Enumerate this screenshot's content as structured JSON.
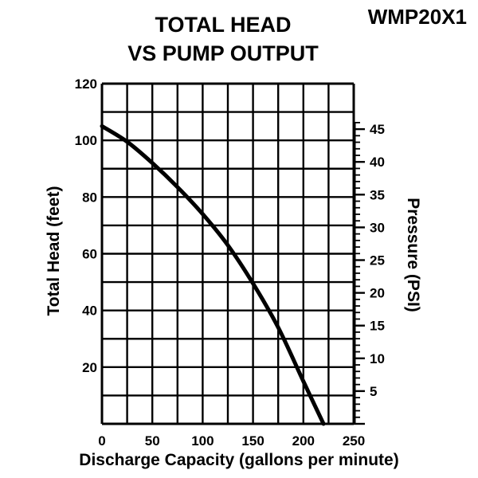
{
  "model": "WMP20X1",
  "chart_data": {
    "type": "line",
    "title_lines": [
      "TOTAL HEAD",
      "VS PUMP OUTPUT"
    ],
    "xlabel": "Discharge Capacity (gallons per minute)",
    "ylabel": "Total Head (feet)",
    "ylabel_right": "Pressure (PSI)",
    "xlim": [
      0,
      250
    ],
    "ylim": [
      0,
      120
    ],
    "x_ticks": [
      "0",
      "50",
      "100",
      "150",
      "200",
      "250"
    ],
    "y_ticks": [
      "20",
      "40",
      "60",
      "80",
      "100",
      "120"
    ],
    "y2_ticks": [
      "5",
      "10",
      "15",
      "20",
      "25",
      "30",
      "35",
      "40",
      "45"
    ],
    "grid": true,
    "series": [
      {
        "x": [
          0,
          25,
          50,
          75,
          100,
          125,
          150,
          175,
          200,
          220
        ],
        "y": [
          105,
          99.5,
          92,
          83.5,
          74,
          63,
          49.5,
          34,
          15,
          0
        ]
      }
    ]
  }
}
